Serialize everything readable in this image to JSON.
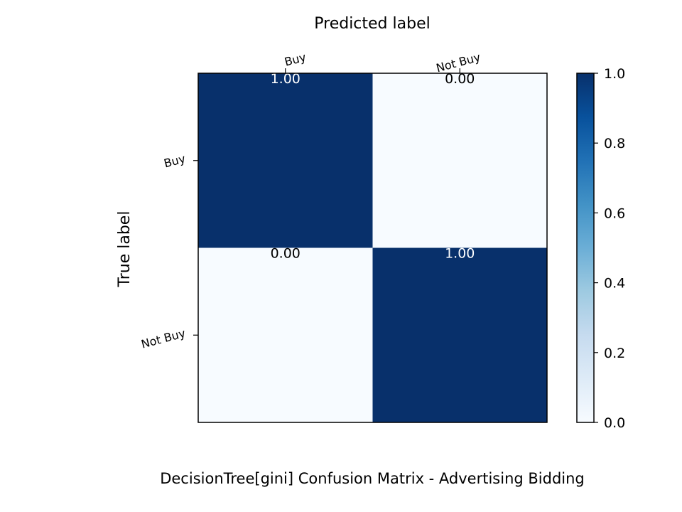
{
  "chart_data": {
    "type": "heatmap",
    "title": "DecisionTree[gini]  Confusion Matrix - Advertising Bidding",
    "xlabel": "Predicted label",
    "ylabel": "True label",
    "x_categories": [
      "Buy",
      "Not Buy"
    ],
    "y_categories": [
      "Buy",
      "Not Buy"
    ],
    "values": [
      [
        1.0,
        0.0
      ],
      [
        0.0,
        1.0
      ]
    ],
    "cell_labels": [
      [
        "1.00",
        "0.00"
      ],
      [
        "0.00",
        "1.00"
      ]
    ],
    "colormap": "Blues",
    "colormap_low": "#f7fbff",
    "colormap_high": "#08306b",
    "colorbar": {
      "range": [
        0.0,
        1.0
      ],
      "ticks": [
        "0.0",
        "0.2",
        "0.4",
        "0.6",
        "0.8",
        "1.0"
      ]
    }
  }
}
